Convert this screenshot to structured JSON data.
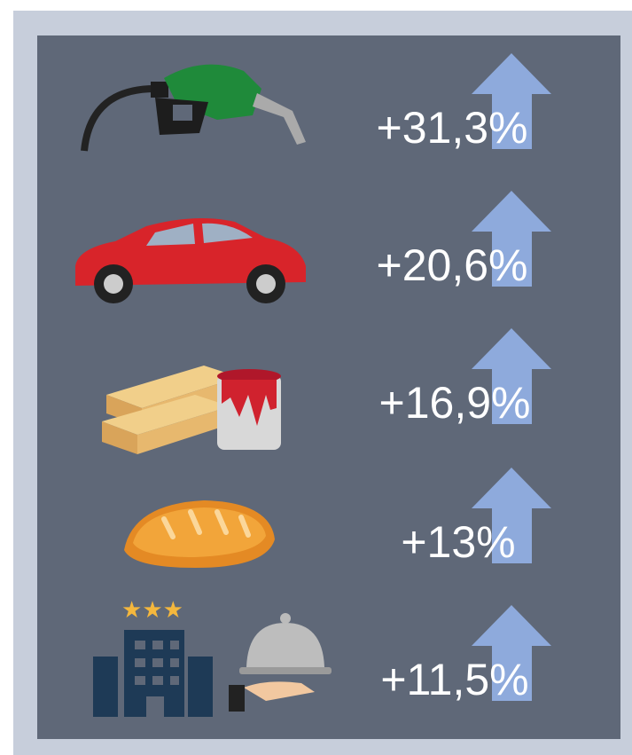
{
  "items": [
    {
      "label": "+31,3%"
    },
    {
      "label": "+20,6%"
    },
    {
      "label": "+16,9%"
    },
    {
      "label": "+13%"
    },
    {
      "label": "+11,5%"
    }
  ]
}
